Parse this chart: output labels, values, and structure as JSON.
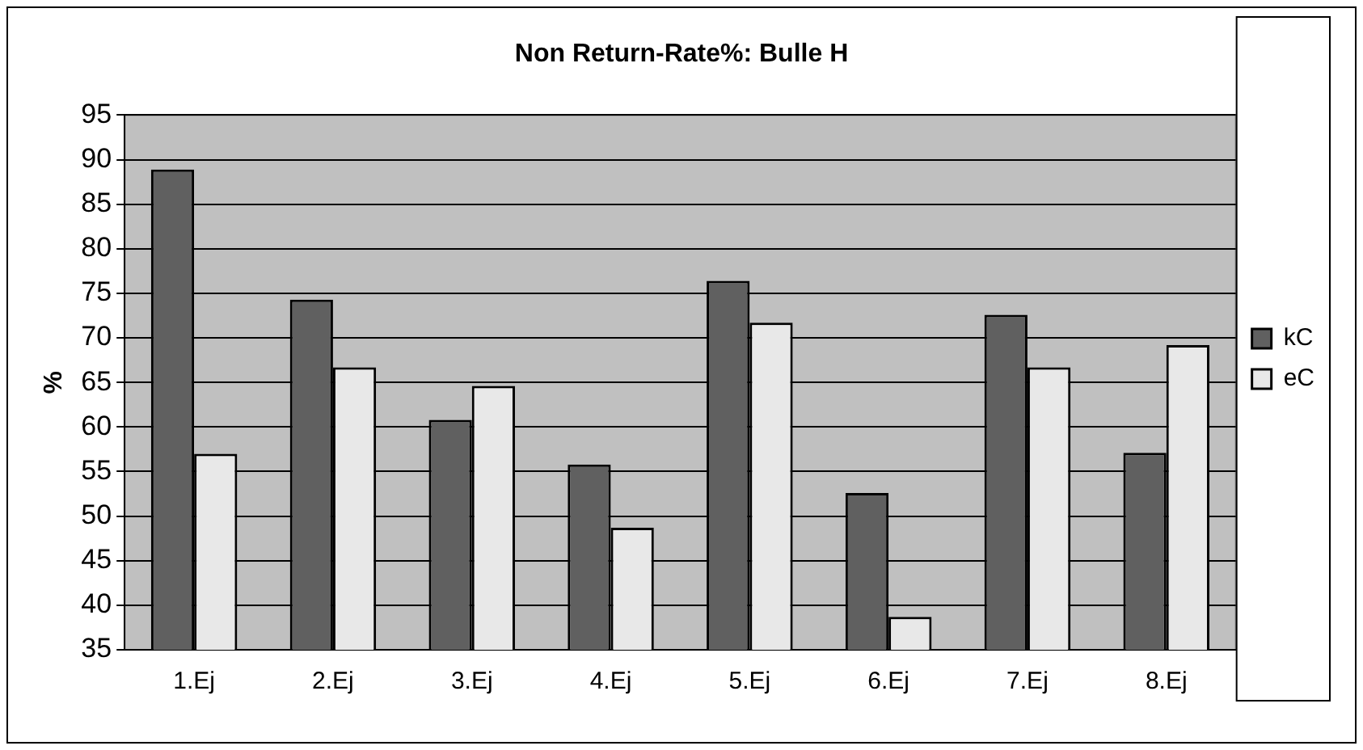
{
  "chart_data": {
    "type": "bar",
    "title": "Non Return-Rate%: Bulle H",
    "ylabel": "%",
    "categories": [
      "1.Ej",
      "2.Ej",
      "3.Ej",
      "4.Ej",
      "5.Ej",
      "6.Ej",
      "7.Ej",
      "8.Ej"
    ],
    "series": [
      {
        "name": "kC",
        "color": "#606060",
        "values": [
          88.9,
          74.3,
          60.8,
          55.8,
          76.4,
          52.6,
          72.6,
          57.1
        ]
      },
      {
        "name": "eC",
        "color": "#e8e8e8",
        "values": [
          57.0,
          66.7,
          64.6,
          48.7,
          71.7,
          38.7,
          66.7,
          69.2
        ]
      }
    ],
    "ylim": [
      35,
      95
    ],
    "yticks": [
      35,
      40,
      45,
      50,
      55,
      60,
      65,
      70,
      75,
      80,
      85,
      90,
      95
    ],
    "grid": "y",
    "legend": "right"
  }
}
